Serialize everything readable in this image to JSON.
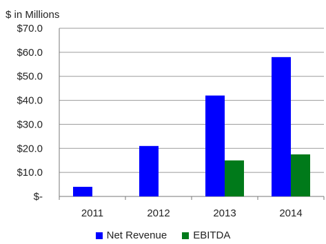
{
  "chart_data": {
    "type": "bar",
    "ylabel": "$ in Millions",
    "categories": [
      "2011",
      "2012",
      "2013",
      "2014"
    ],
    "series": [
      {
        "name": "Net Revenue",
        "color": "#0000ff",
        "values": [
          4,
          21,
          42,
          58
        ]
      },
      {
        "name": "EBITDA",
        "color": "#007a1a",
        "values": [
          null,
          null,
          15,
          17.5
        ]
      }
    ],
    "y_ticks": [
      0,
      10,
      20,
      30,
      40,
      50,
      60,
      70
    ],
    "y_tick_labels": [
      "$-",
      "$10.0",
      "$20.0",
      "$30.0",
      "$40.0",
      "$50.0",
      "$60.0",
      "$70.0"
    ],
    "ylim": [
      0,
      70
    ],
    "grid": true,
    "legend_position": "bottom"
  }
}
